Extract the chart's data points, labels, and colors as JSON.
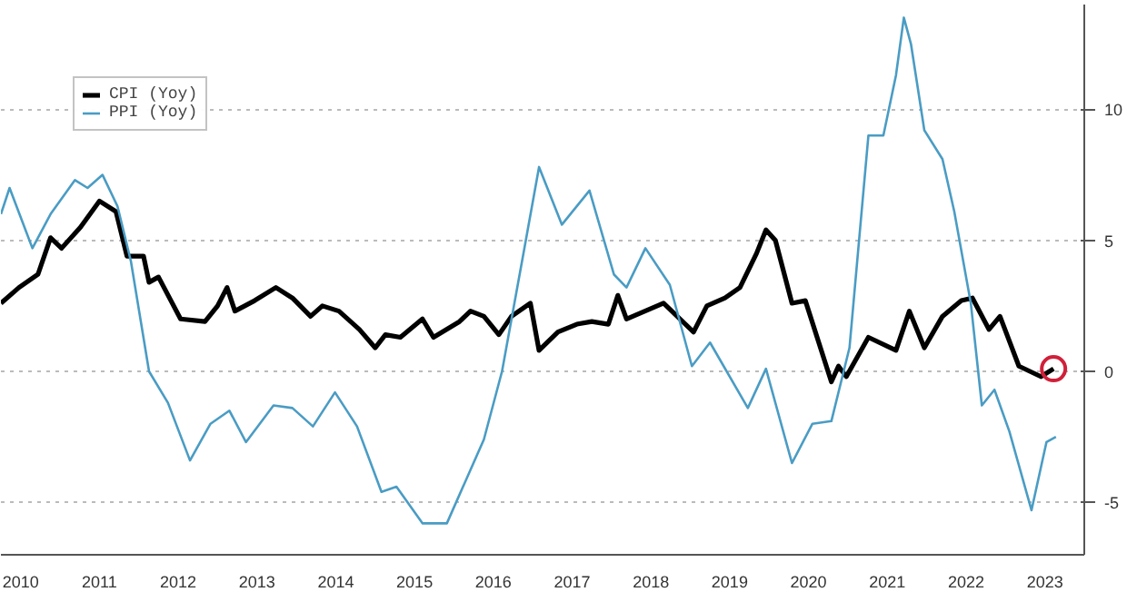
{
  "chart_data": {
    "type": "line",
    "x": [
      2010.25,
      2010.48,
      2010.72,
      2010.88,
      2011.02,
      2011.26,
      2011.5,
      2011.71,
      2011.85,
      2012.06,
      2012.13,
      2012.25,
      2012.53,
      2012.84,
      2013.0,
      2013.12,
      2013.22,
      2013.47,
      2013.74,
      2013.95,
      2014.18,
      2014.33,
      2014.54,
      2014.8,
      2015.0,
      2015.13,
      2015.32,
      2015.6,
      2015.74,
      2016.07,
      2016.21,
      2016.38,
      2016.57,
      2016.73,
      2016.97,
      2017.08,
      2017.32,
      2017.56,
      2017.75,
      2017.96,
      2018.08,
      2018.19,
      2018.66,
      2019.04,
      2019.21,
      2019.44,
      2019.63,
      2019.84,
      2019.96,
      2020.08,
      2020.29,
      2020.46,
      2020.79,
      2020.88,
      2020.98,
      2021.26,
      2021.61,
      2021.78,
      2021.97,
      2022.2,
      2022.44,
      2022.58,
      2022.79,
      2022.93,
      2023.17,
      2023.45,
      2023.61
    ],
    "series": [
      {
        "name": "CPI (Yoy)",
        "color": "#000000",
        "values": [
          2.6,
          3.2,
          3.7,
          5.1,
          4.7,
          5.5,
          6.5,
          6.1,
          4.4,
          4.4,
          3.4,
          3.6,
          2.0,
          1.9,
          2.5,
          3.2,
          2.3,
          2.7,
          3.2,
          2.8,
          2.1,
          2.5,
          2.3,
          1.6,
          0.9,
          1.4,
          1.3,
          2.0,
          1.3,
          1.9,
          2.3,
          2.1,
          1.4,
          2.1,
          2.6,
          0.8,
          1.5,
          1.8,
          1.9,
          1.8,
          2.9,
          2.0,
          2.6,
          1.5,
          2.5,
          2.8,
          3.2,
          4.5,
          5.4,
          5.0,
          2.6,
          2.7,
          -0.4,
          0.2,
          -0.2,
          1.3,
          0.8,
          2.3,
          0.9,
          2.1,
          2.7,
          2.8,
          1.6,
          2.1,
          0.2,
          -0.2,
          0.1
        ]
      },
      {
        "name": "PPI (Yoy)",
        "color": "#4a9cc4",
        "x": [
          2010.25,
          2010.36,
          2010.65,
          2010.88,
          2011.19,
          2011.35,
          2011.54,
          2011.73,
          2011.9,
          2012.13,
          2012.37,
          2012.65,
          2012.91,
          2013.15,
          2013.36,
          2013.71,
          2013.95,
          2014.21,
          2014.49,
          2014.77,
          2015.08,
          2015.27,
          2015.6,
          2015.91,
          2016.38,
          2016.61,
          2016.9,
          2017.08,
          2017.37,
          2017.72,
          2018.03,
          2018.19,
          2018.43,
          2018.74,
          2019.02,
          2019.25,
          2019.73,
          2019.96,
          2020.29,
          2020.55,
          2020.79,
          2021.02,
          2021.26,
          2021.45,
          2021.61,
          2021.71,
          2021.8,
          2021.97,
          2022.2,
          2022.35,
          2022.56,
          2022.7,
          2022.86,
          2023.05,
          2023.33,
          2023.52,
          2023.64
        ],
        "values": [
          6.0,
          7.0,
          4.7,
          6.0,
          7.3,
          7.0,
          7.5,
          6.3,
          4.2,
          0.0,
          -1.2,
          -3.4,
          -2.0,
          -1.5,
          -2.7,
          -1.3,
          -1.4,
          -2.1,
          -0.8,
          -2.1,
          -4.6,
          -4.4,
          -5.8,
          -5.8,
          -2.6,
          0.0,
          4.8,
          7.8,
          5.6,
          6.9,
          3.7,
          3.2,
          4.7,
          3.3,
          0.2,
          1.1,
          -1.4,
          0.1,
          -3.5,
          -2.0,
          -1.9,
          0.9,
          9.0,
          9.0,
          11.3,
          13.5,
          12.5,
          9.2,
          8.1,
          6.1,
          2.6,
          -1.3,
          -0.7,
          -2.3,
          -5.3,
          -2.7,
          -2.5
        ]
      }
    ],
    "xlim": [
      2010.25,
      2024.0
    ],
    "xticks": [
      {
        "value": 2010.5,
        "label": "2010"
      },
      {
        "value": 2011.5,
        "label": "2011"
      },
      {
        "value": 2012.5,
        "label": "2012"
      },
      {
        "value": 2013.5,
        "label": "2013"
      },
      {
        "value": 2014.5,
        "label": "2014"
      },
      {
        "value": 2015.5,
        "label": "2015"
      },
      {
        "value": 2016.5,
        "label": "2016"
      },
      {
        "value": 2017.5,
        "label": "2017"
      },
      {
        "value": 2018.5,
        "label": "2018"
      },
      {
        "value": 2019.5,
        "label": "2019"
      },
      {
        "value": 2020.5,
        "label": "2020"
      },
      {
        "value": 2021.5,
        "label": "2021"
      },
      {
        "value": 2022.5,
        "label": "2022"
      },
      {
        "value": 2023.5,
        "label": "2023"
      }
    ],
    "ylim": [
      -7,
      14
    ],
    "yticks": [
      -5,
      0,
      5,
      10
    ],
    "grid": "y",
    "legend": "top left",
    "marker": "none",
    "line_style": "solid"
  }
}
